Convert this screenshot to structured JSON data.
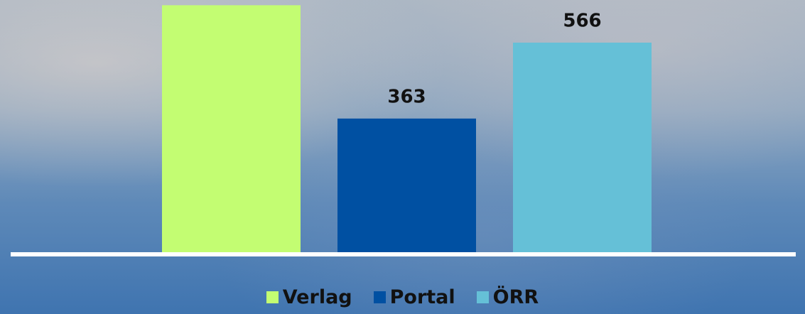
{
  "chart_data": {
    "type": "bar",
    "categories": [
      "Verlag",
      "Portal",
      "ÖRR"
    ],
    "values": [
      666,
      363,
      566
    ],
    "colors": [
      "#c3fd72",
      "#0050a2",
      "#65c0d7"
    ],
    "ylim": [
      0,
      680
    ],
    "legend": "bottom"
  }
}
